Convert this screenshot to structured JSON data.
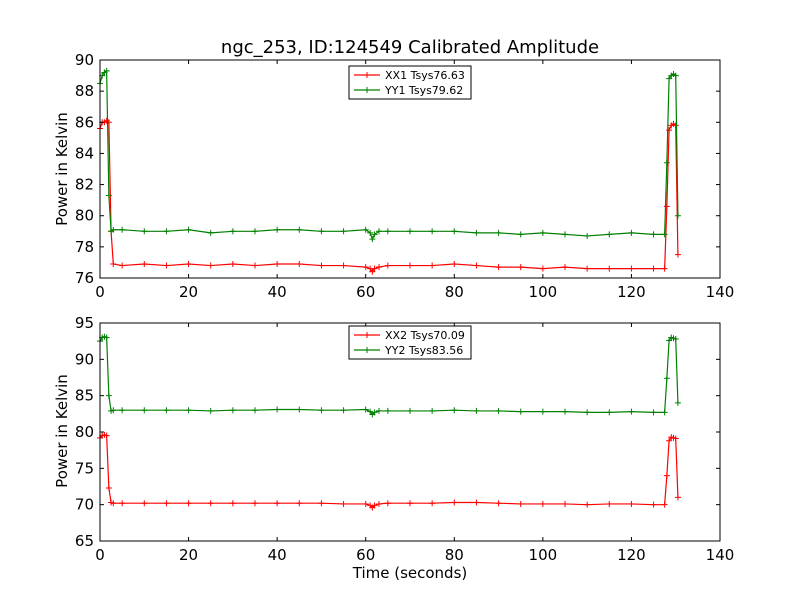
{
  "chart_data": [
    {
      "type": "line",
      "title": "ngc_253, ID:124549 Calibrated Amplitude",
      "xlabel": "",
      "ylabel": "Power in Kelvin",
      "xlim": [
        0,
        140
      ],
      "ylim": [
        76,
        90
      ],
      "xticks": [
        "0",
        "20",
        "40",
        "60",
        "80",
        "100",
        "120",
        "140"
      ],
      "yticks": [
        "76",
        "78",
        "80",
        "82",
        "84",
        "86",
        "88",
        "90"
      ],
      "legend_position": "upper-center",
      "grid": false,
      "series": [
        {
          "name": "XX1 Tsys76.63",
          "color": "#ff0000",
          "x": [
            0,
            0.5,
            1,
            1.5,
            2,
            2.5,
            3,
            5,
            10,
            15,
            20,
            25,
            30,
            35,
            40,
            45,
            50,
            55,
            60,
            61,
            61.5,
            62,
            63,
            65,
            70,
            75,
            80,
            85,
            90,
            95,
            100,
            105,
            110,
            115,
            120,
            125,
            127.5,
            128,
            128.5,
            129,
            129.5,
            130,
            130.5
          ],
          "y": [
            85.6,
            86.0,
            86.0,
            86.1,
            86.0,
            79.0,
            76.9,
            76.8,
            76.9,
            76.8,
            76.9,
            76.8,
            76.9,
            76.8,
            76.9,
            76.9,
            76.8,
            76.8,
            76.7,
            76.6,
            76.4,
            76.6,
            76.7,
            76.8,
            76.8,
            76.8,
            76.9,
            76.8,
            76.7,
            76.7,
            76.6,
            76.7,
            76.6,
            76.6,
            76.6,
            76.6,
            76.6,
            80.6,
            85.5,
            85.8,
            85.9,
            85.8,
            77.5
          ]
        },
        {
          "name": "YY1 Tsys79.62",
          "color": "#008000",
          "x": [
            0,
            0.5,
            1,
            1.5,
            2,
            2.5,
            3,
            5,
            10,
            15,
            20,
            25,
            30,
            35,
            40,
            45,
            50,
            55,
            60,
            61,
            61.5,
            62,
            63,
            65,
            70,
            75,
            80,
            85,
            90,
            95,
            100,
            105,
            110,
            115,
            120,
            125,
            127.5,
            128,
            128.5,
            129,
            129.5,
            130,
            130.5
          ],
          "y": [
            88.5,
            89.0,
            89.2,
            89.3,
            81.3,
            79.0,
            79.1,
            79.1,
            79.0,
            79.0,
            79.1,
            78.9,
            79.0,
            79.0,
            79.1,
            79.1,
            79.0,
            79.0,
            79.1,
            78.9,
            78.5,
            78.8,
            79.0,
            79.0,
            79.0,
            79.0,
            79.0,
            78.9,
            78.9,
            78.8,
            78.9,
            78.8,
            78.7,
            78.8,
            78.9,
            78.8,
            78.8,
            83.4,
            88.8,
            89.0,
            89.1,
            89.0,
            80.0
          ]
        }
      ]
    },
    {
      "type": "line",
      "title": "",
      "xlabel": "Time (seconds)",
      "ylabel": "Power in Kelvin",
      "xlim": [
        0,
        140
      ],
      "ylim": [
        65,
        95
      ],
      "xticks": [
        "0",
        "20",
        "40",
        "60",
        "80",
        "100",
        "120",
        "140"
      ],
      "yticks": [
        "65",
        "70",
        "75",
        "80",
        "85",
        "90",
        "95"
      ],
      "legend_position": "upper-center",
      "grid": false,
      "series": [
        {
          "name": "XX2 Tsys70.09",
          "color": "#ff0000",
          "x": [
            0,
            0.5,
            1,
            1.5,
            2,
            2.5,
            3,
            5,
            10,
            15,
            20,
            25,
            30,
            35,
            40,
            45,
            50,
            55,
            60,
            61,
            61.5,
            62,
            63,
            65,
            70,
            75,
            80,
            85,
            90,
            95,
            100,
            105,
            110,
            115,
            120,
            125,
            127.5,
            128,
            128.5,
            129,
            129.5,
            130,
            130.5
          ],
          "y": [
            79.2,
            79.5,
            79.6,
            79.5,
            72.3,
            70.3,
            70.2,
            70.2,
            70.2,
            70.2,
            70.2,
            70.2,
            70.2,
            70.2,
            70.2,
            70.2,
            70.2,
            70.1,
            70.1,
            69.9,
            69.6,
            69.9,
            70.1,
            70.2,
            70.2,
            70.2,
            70.3,
            70.3,
            70.2,
            70.1,
            70.1,
            70.1,
            70.0,
            70.1,
            70.1,
            70.0,
            70.0,
            74.0,
            78.8,
            79.3,
            79.2,
            79.1,
            71.0
          ]
        },
        {
          "name": "YY2 Tsys83.56",
          "color": "#008000",
          "x": [
            0,
            0.5,
            1,
            1.5,
            2,
            2.5,
            3,
            5,
            10,
            15,
            20,
            25,
            30,
            35,
            40,
            45,
            50,
            55,
            60,
            61,
            61.5,
            62,
            63,
            65,
            70,
            75,
            80,
            85,
            90,
            95,
            100,
            105,
            110,
            115,
            120,
            125,
            127.5,
            128,
            128.5,
            129,
            129.5,
            130,
            130.5
          ],
          "y": [
            92.5,
            93.0,
            93.1,
            93.0,
            85.0,
            82.9,
            83.0,
            83.0,
            83.0,
            83.0,
            83.0,
            82.9,
            83.0,
            83.0,
            83.1,
            83.1,
            83.0,
            83.0,
            83.1,
            82.8,
            82.4,
            82.7,
            82.9,
            82.9,
            82.9,
            82.9,
            83.0,
            82.9,
            82.9,
            82.8,
            82.8,
            82.8,
            82.7,
            82.7,
            82.8,
            82.7,
            82.7,
            87.4,
            92.6,
            93.0,
            92.9,
            92.8,
            84.0
          ]
        }
      ]
    }
  ]
}
